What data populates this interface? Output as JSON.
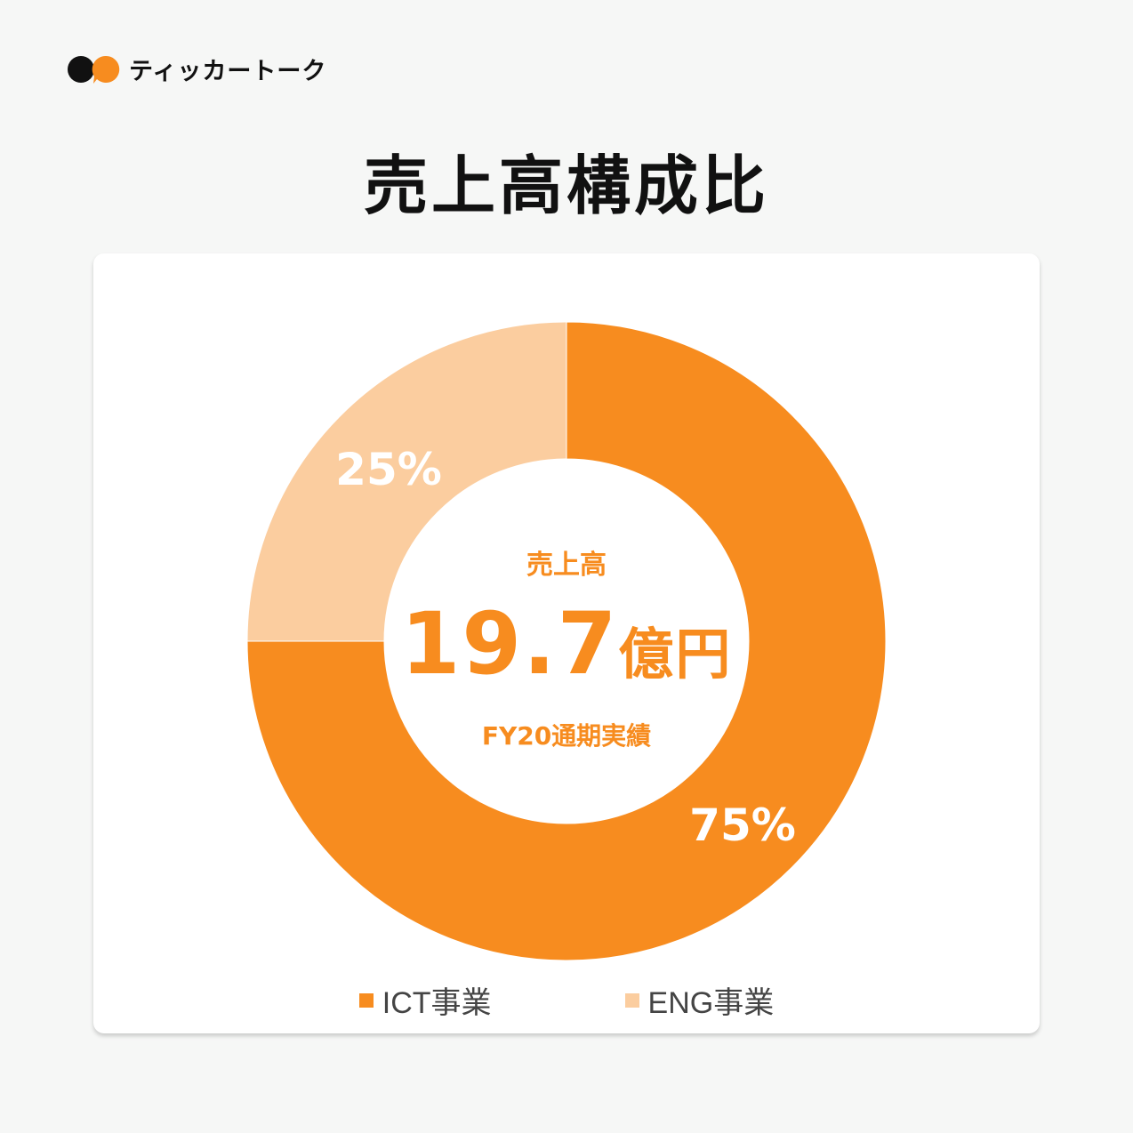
{
  "brand": {
    "name": "ティッカートーク",
    "color": "#f78c1f"
  },
  "page": {
    "title": "売上高構成比"
  },
  "center": {
    "label": "売上高",
    "value": "19.7",
    "unit": "億円",
    "note": "FY20通期実績"
  },
  "chart_data": {
    "type": "pie",
    "donut": true,
    "categories": [
      "ICT事業",
      "ENG事業"
    ],
    "values": [
      75,
      25
    ],
    "value_labels": [
      "75%",
      "25%"
    ],
    "colors": [
      "#f78c1f",
      "#fbcd9f"
    ],
    "legend": "bottom",
    "start_angle": "12 o'clock",
    "direction": "clockwise"
  },
  "legend": [
    {
      "label": "ICT事業",
      "color": "#f78c1f"
    },
    {
      "label": "ENG事業",
      "color": "#fbcd9f"
    }
  ]
}
